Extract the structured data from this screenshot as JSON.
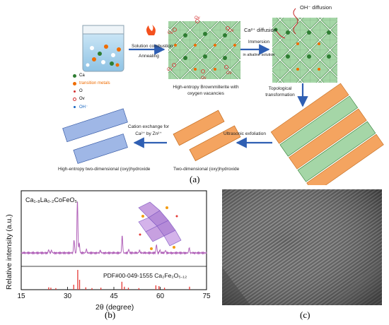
{
  "panel_a": {
    "label": "(a)",
    "legend": [
      {
        "label": "Ca",
        "color": "#2e7d32",
        "shape": "dot"
      },
      {
        "label": "transition metals",
        "color": "#ef6c00",
        "shape": "dot"
      },
      {
        "label": "O",
        "color": "#d32f2f",
        "shape": "small-dot"
      },
      {
        "label": "Ov",
        "color": "#d32f2f",
        "shape": "ring"
      },
      {
        "label": "OH⁻",
        "color": "#1565c0",
        "shape": "oh"
      }
    ],
    "steps": {
      "solution_combustion": "Solution combustion",
      "annealing": "Annealing",
      "brownmillerite_caption_1": "High-entropy Brownmillerite with",
      "brownmillerite_caption_2": "oxygen vacancies",
      "immersion_1": "Immersion",
      "immersion_2": "in alkaline solution",
      "oh_diffusion": "OH⁻ diffusion",
      "ca_diffusion": "Ca²⁺ diffusion",
      "topological_1": "Topological",
      "topological_2": "transformation",
      "ultrasonic": "Ultrasonic exfoliation",
      "cation_exchange_1": "Cation exchange for",
      "cation_exchange_2": "Ca²⁺ by Zn²⁺",
      "two_d_caption": "Two-dimensional (oxy)hydroxide",
      "he_two_d_caption": "High-entropy two-dimensional (oxy)hydroxide"
    },
    "ov_label": "Ov",
    "colors": {
      "octa_green": "#a5d6a7",
      "octa_orange": "#f4a460",
      "octa_blue": "#9fb7e6",
      "arrow": "#2f5fb3"
    }
  },
  "panel_b": {
    "label": "(b)",
    "sample_label": "Ca₁.₈La₀.₂CoFeO₅",
    "reference_label": "PDF#00-049-1555 Ca₂Fe₂O₅.₁₂",
    "chart_data": {
      "type": "line",
      "xlabel": "2θ (degree)",
      "ylabel": "Relative intensity (a.u.)",
      "xlim": [
        15,
        75
      ],
      "x_ticks": [
        15,
        30,
        45,
        60,
        75
      ],
      "series": [
        {
          "name": "Ca₁.₈La₀.₂CoFeO₅",
          "color": "#b060b8",
          "peaks": [
            {
              "x": 12.2,
              "h": 0.05
            },
            {
              "x": 23.9,
              "h": 0.06
            },
            {
              "x": 24.8,
              "h": 0.05
            },
            {
              "x": 32.1,
              "h": 0.25
            },
            {
              "x": 33.2,
              "h": 1.0
            },
            {
              "x": 33.8,
              "h": 0.18
            },
            {
              "x": 36.1,
              "h": 0.07
            },
            {
              "x": 40.6,
              "h": 0.05
            },
            {
              "x": 47.7,
              "h": 0.33
            },
            {
              "x": 49.8,
              "h": 0.07
            },
            {
              "x": 53.3,
              "h": 0.05
            },
            {
              "x": 58.8,
              "h": 0.16
            },
            {
              "x": 59.9,
              "h": 0.06
            },
            {
              "x": 61.7,
              "h": 0.05
            },
            {
              "x": 69.4,
              "h": 0.1
            }
          ]
        },
        {
          "name": "PDF#00-049-1555 Ca₂Fe₂O₅.₁₂",
          "color": "#e53935",
          "sticks": [
            {
              "x": 23.9,
              "h": 0.12
            },
            {
              "x": 24.6,
              "h": 0.1
            },
            {
              "x": 26.2,
              "h": 0.08
            },
            {
              "x": 32.0,
              "h": 0.25
            },
            {
              "x": 33.3,
              "h": 1.0
            },
            {
              "x": 33.9,
              "h": 0.5
            },
            {
              "x": 35.9,
              "h": 0.12
            },
            {
              "x": 37.9,
              "h": 0.08
            },
            {
              "x": 40.8,
              "h": 0.1
            },
            {
              "x": 47.6,
              "h": 0.4
            },
            {
              "x": 48.4,
              "h": 0.15
            },
            {
              "x": 49.7,
              "h": 0.1
            },
            {
              "x": 53.1,
              "h": 0.08
            },
            {
              "x": 58.6,
              "h": 0.22
            },
            {
              "x": 59.6,
              "h": 0.18
            },
            {
              "x": 61.4,
              "h": 0.1
            },
            {
              "x": 69.5,
              "h": 0.15
            }
          ]
        }
      ]
    }
  },
  "panel_c": {
    "label": "(c)",
    "image_desc": "HRTEM lattice fringes"
  }
}
